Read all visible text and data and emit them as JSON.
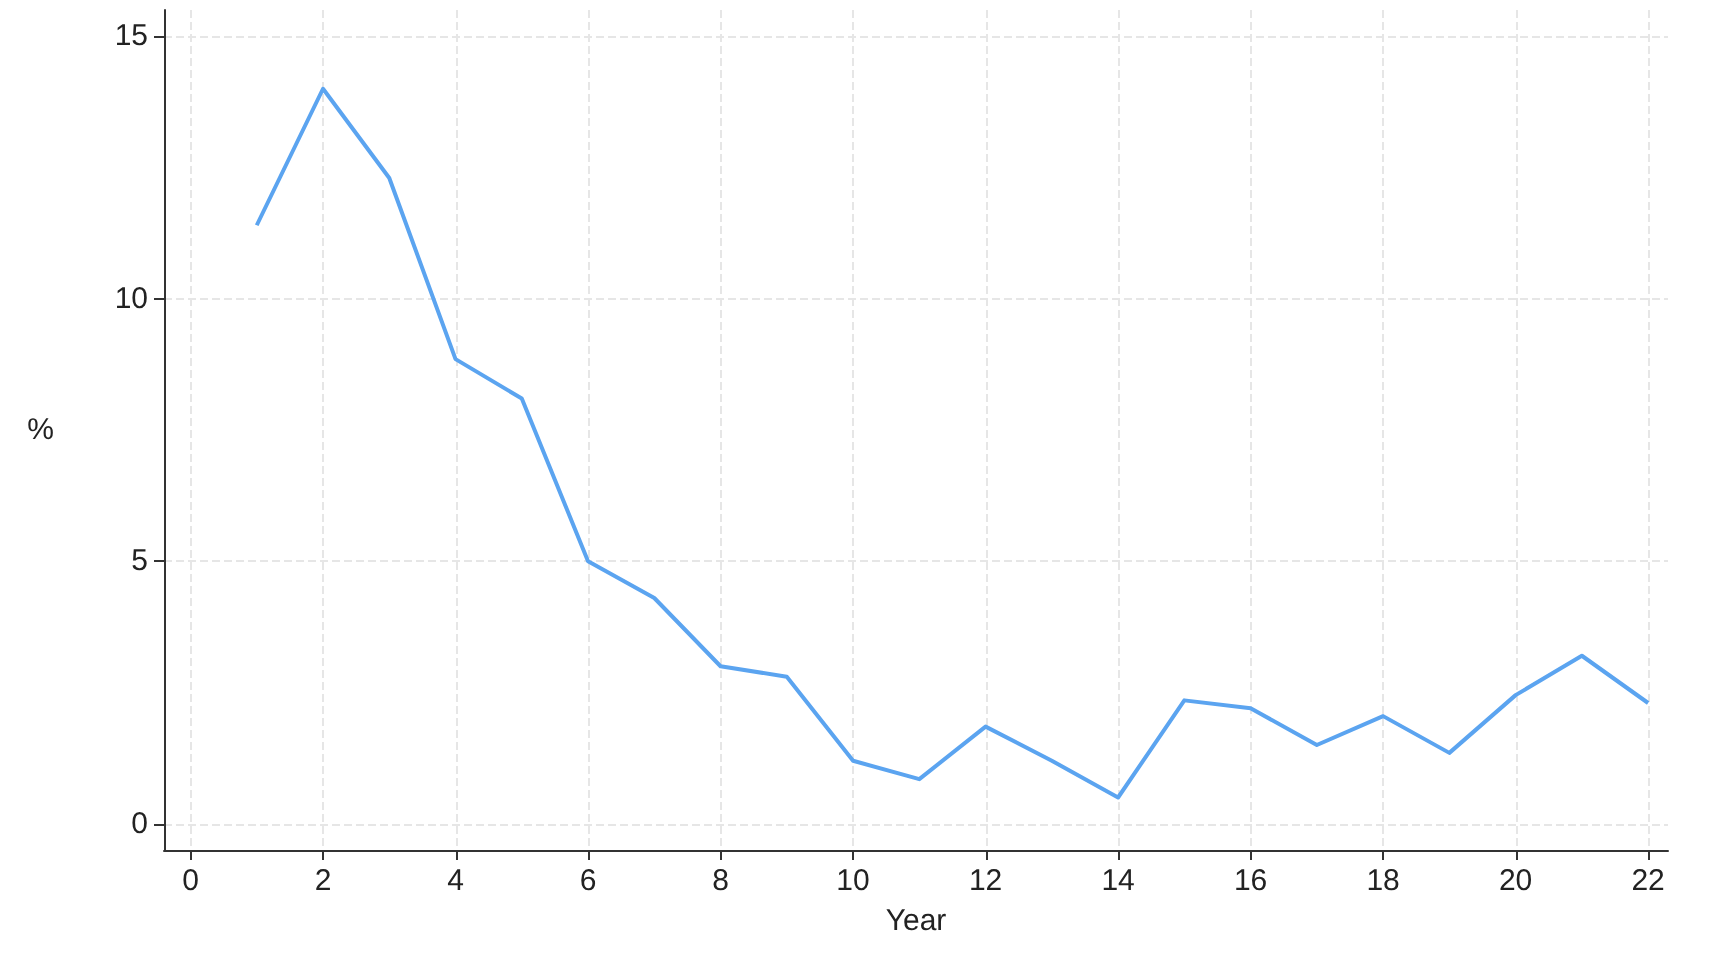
{
  "chart_data": {
    "type": "line",
    "xlabel": "Year",
    "ylabel": "%",
    "x": [
      1,
      2,
      3,
      4,
      5,
      6,
      7,
      8,
      9,
      10,
      11,
      12,
      13,
      14,
      15,
      16,
      17,
      18,
      19,
      20,
      21,
      22
    ],
    "series": [
      {
        "color": "#5ba4f0",
        "values": [
          11.4,
          14.0,
          12.3,
          8.85,
          8.1,
          5.0,
          4.3,
          3.0,
          2.8,
          1.2,
          0.85,
          1.85,
          1.2,
          0.5,
          2.35,
          2.2,
          1.5,
          2.05,
          1.35,
          2.45,
          3.2,
          2.3
        ]
      }
    ],
    "xlim": [
      -0.4,
      22.3
    ],
    "xticks": [
      0,
      2,
      4,
      6,
      8,
      10,
      12,
      14,
      16,
      18,
      20,
      22
    ],
    "ylim": [
      -0.5,
      15.5
    ],
    "yticks": [
      0,
      5,
      10,
      15
    ],
    "grid": true,
    "marker": "none",
    "line_style": "solid"
  }
}
